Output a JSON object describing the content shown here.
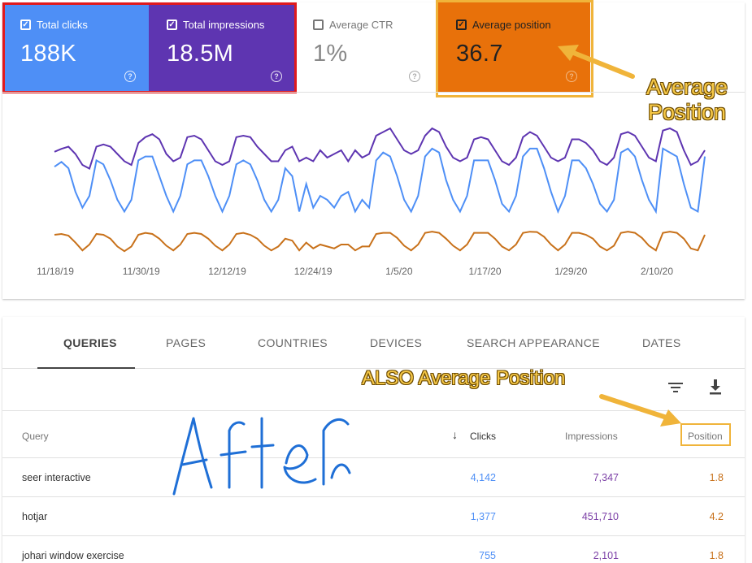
{
  "metrics": {
    "clicks": {
      "label": "Total clicks",
      "value": "188K",
      "checked": true,
      "color": "#4e8ff6"
    },
    "impressions": {
      "label": "Total impressions",
      "value": "18.5M",
      "checked": true,
      "color": "#5e35b1"
    },
    "ctr": {
      "label": "Average CTR",
      "value": "1%",
      "checked": false
    },
    "position": {
      "label": "Average position",
      "value": "36.7",
      "checked": true,
      "color": "#e8710a"
    }
  },
  "help_glyph": "?",
  "chart_data": {
    "type": "line",
    "x_tick_labels": [
      "11/18/19",
      "11/30/19",
      "12/12/19",
      "12/24/19",
      "1/5/20",
      "1/17/20",
      "1/29/20",
      "2/10/20"
    ],
    "y_axis": "hidden",
    "series": [
      {
        "name": "Total clicks",
        "color": "#4e8ff6",
        "values": [
          0.72,
          0.78,
          0.7,
          0.4,
          0.2,
          0.35,
          0.8,
          0.75,
          0.55,
          0.3,
          0.15,
          0.3,
          0.8,
          0.85,
          0.85,
          0.6,
          0.35,
          0.15,
          0.35,
          0.75,
          0.8,
          0.8,
          0.6,
          0.35,
          0.15,
          0.35,
          0.75,
          0.8,
          0.75,
          0.55,
          0.3,
          0.15,
          0.3,
          0.7,
          0.6,
          0.15,
          0.5,
          0.2,
          0.35,
          0.3,
          0.2,
          0.35,
          0.4,
          0.15,
          0.3,
          0.2,
          0.8,
          0.9,
          0.85,
          0.6,
          0.3,
          0.15,
          0.35,
          0.85,
          0.95,
          0.9,
          0.55,
          0.3,
          0.15,
          0.35,
          0.8,
          0.8,
          0.8,
          0.55,
          0.25,
          0.15,
          0.35,
          0.85,
          0.95,
          0.95,
          0.7,
          0.4,
          0.15,
          0.35,
          0.8,
          0.8,
          0.7,
          0.5,
          0.25,
          0.15,
          0.3,
          0.9,
          0.95,
          0.85,
          0.55,
          0.3,
          0.15,
          0.95,
          0.9,
          0.85,
          0.5,
          0.2,
          0.15,
          0.85
        ]
      },
      {
        "name": "Total impressions",
        "color": "#5e35b1",
        "values": [
          0.68,
          0.72,
          0.75,
          0.65,
          0.5,
          0.45,
          0.75,
          0.78,
          0.75,
          0.65,
          0.55,
          0.5,
          0.8,
          0.88,
          0.92,
          0.85,
          0.65,
          0.55,
          0.6,
          0.88,
          0.9,
          0.85,
          0.7,
          0.55,
          0.5,
          0.55,
          0.88,
          0.9,
          0.88,
          0.75,
          0.65,
          0.55,
          0.55,
          0.7,
          0.75,
          0.55,
          0.6,
          0.55,
          0.7,
          0.6,
          0.65,
          0.7,
          0.55,
          0.7,
          0.6,
          0.65,
          0.9,
          0.95,
          1.0,
          0.85,
          0.7,
          0.65,
          0.7,
          0.9,
          1.0,
          0.95,
          0.75,
          0.6,
          0.55,
          0.6,
          0.85,
          0.88,
          0.85,
          0.7,
          0.55,
          0.5,
          0.6,
          0.88,
          0.95,
          0.9,
          0.75,
          0.6,
          0.55,
          0.6,
          0.85,
          0.85,
          0.8,
          0.7,
          0.55,
          0.5,
          0.6,
          0.92,
          0.95,
          0.9,
          0.75,
          0.6,
          0.55,
          0.97,
          1.0,
          0.95,
          0.7,
          0.5,
          0.55,
          0.7
        ]
      },
      {
        "name": "Average position",
        "color": "#c8711a",
        "values": [
          0.5,
          0.52,
          0.48,
          0.3,
          0.1,
          0.25,
          0.52,
          0.5,
          0.4,
          0.2,
          0.08,
          0.2,
          0.5,
          0.55,
          0.52,
          0.4,
          0.22,
          0.1,
          0.25,
          0.52,
          0.55,
          0.52,
          0.4,
          0.22,
          0.1,
          0.25,
          0.52,
          0.55,
          0.5,
          0.4,
          0.22,
          0.1,
          0.2,
          0.4,
          0.35,
          0.1,
          0.3,
          0.15,
          0.25,
          0.2,
          0.15,
          0.25,
          0.25,
          0.1,
          0.2,
          0.2,
          0.52,
          0.55,
          0.55,
          0.42,
          0.22,
          0.1,
          0.25,
          0.55,
          0.58,
          0.55,
          0.4,
          0.22,
          0.1,
          0.25,
          0.55,
          0.55,
          0.55,
          0.4,
          0.2,
          0.1,
          0.25,
          0.55,
          0.58,
          0.57,
          0.45,
          0.25,
          0.1,
          0.25,
          0.55,
          0.55,
          0.5,
          0.4,
          0.2,
          0.1,
          0.22,
          0.55,
          0.58,
          0.55,
          0.42,
          0.22,
          0.1,
          0.55,
          0.58,
          0.55,
          0.4,
          0.15,
          0.1,
          0.5
        ]
      }
    ]
  },
  "annotations": {
    "avg_position_top": "Average Position",
    "avg_position_top_line1": "Average",
    "avg_position_top_line2": "Position",
    "also_avg_position": "ALSO Average Position",
    "handwriting": "After"
  },
  "tabs": [
    {
      "label": "QUERIES",
      "active": true
    },
    {
      "label": "PAGES",
      "active": false
    },
    {
      "label": "COUNTRIES",
      "active": false
    },
    {
      "label": "DEVICES",
      "active": false
    },
    {
      "label": "SEARCH APPEARANCE",
      "active": false
    },
    {
      "label": "DATES",
      "active": false
    }
  ],
  "table": {
    "headers": {
      "query": "Query",
      "clicks": "Clicks",
      "impressions": "Impressions",
      "position": "Position"
    },
    "sort_arrow": "↓",
    "rows": [
      {
        "query": "seer interactive",
        "clicks": "4,142",
        "impressions": "7,347",
        "position": "1.8"
      },
      {
        "query": "hotjar",
        "clicks": "1,377",
        "impressions": "451,710",
        "position": "4.2"
      },
      {
        "query": "johari window exercise",
        "clicks": "755",
        "impressions": "2,101",
        "position": "1.8"
      }
    ]
  }
}
